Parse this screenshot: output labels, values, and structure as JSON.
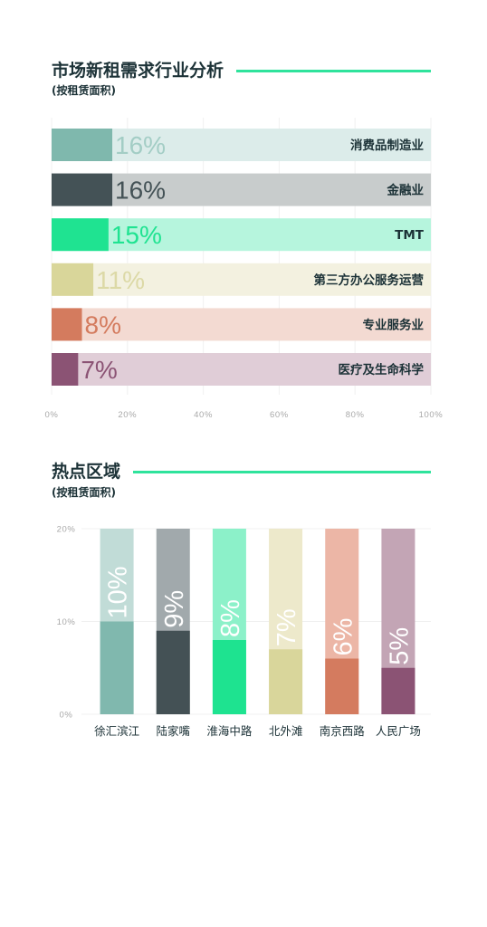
{
  "theme": {
    "title_color": "#1c3237",
    "text_color": "#1c3237",
    "accent_color": "#2fe39c",
    "axis_label_color": "#a8a8a8",
    "grid_color": "#f0f0f0"
  },
  "chart_data": [
    {
      "type": "bar",
      "orientation": "horizontal",
      "title": "市场新租需求行业分析",
      "subtitle": "(按租赁面积)",
      "categories": [
        "消费品制造业",
        "金融业",
        "TMT",
        "第三方办公服务运营",
        "专业服务业",
        "医疗及生命科学"
      ],
      "values": [
        16,
        16,
        15,
        11,
        8,
        7
      ],
      "value_labels": [
        "16%",
        "16%",
        "15%",
        "11%",
        "8%",
        "7%"
      ],
      "xlim": [
        0,
        100
      ],
      "x_ticks": [
        0,
        20,
        40,
        60,
        80,
        100
      ],
      "x_tick_labels": [
        "0%",
        "20%",
        "40%",
        "60%",
        "80%",
        "100%"
      ],
      "grid": true,
      "bar_colors": [
        "#7fb8ad",
        "#445256",
        "#1fe391",
        "#d9d69a",
        "#d47b5e",
        "#8b5374"
      ],
      "track_colors": [
        "#dcecea",
        "#c8cccc",
        "#b6f5dd",
        "#f3f1e0",
        "#f3dad2",
        "#e0cdd7"
      ],
      "label_colors": [
        "#a3cdc5",
        "#445256",
        "#1fe391",
        "#dcd9a6",
        "#d47b5e",
        "#8b5374"
      ]
    },
    {
      "type": "bar",
      "orientation": "vertical",
      "title": "热点区域",
      "subtitle": "(按租赁面积)",
      "categories": [
        "徐汇滨江",
        "陆家嘴",
        "淮海中路",
        "北外滩",
        "南京西路",
        "人民广场"
      ],
      "values": [
        10,
        9,
        8,
        7,
        6,
        5
      ],
      "value_labels": [
        "10%",
        "9%",
        "8%",
        "7%",
        "6%",
        "5%"
      ],
      "ylim": [
        0,
        20
      ],
      "y_ticks": [
        0,
        10,
        20
      ],
      "y_tick_labels": [
        "0%",
        "10%",
        "20%"
      ],
      "grid": true,
      "bar_colors": [
        "#80b8ae",
        "#445155",
        "#1ee390",
        "#d9d69b",
        "#d47b5f",
        "#8b5374"
      ],
      "track_colors": [
        "#c1dcd7",
        "#a1a9ac",
        "#8cf1c9",
        "#ede9cb",
        "#ecb6a6",
        "#c3a5b5"
      ],
      "value_label_color": "#ffffff"
    }
  ]
}
